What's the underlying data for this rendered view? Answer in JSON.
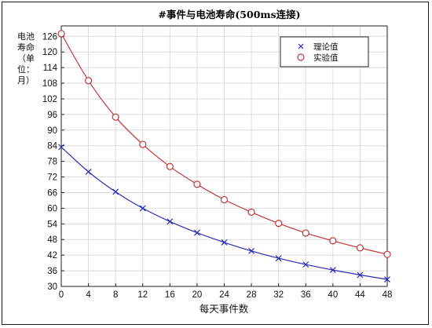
{
  "chart_data": {
    "type": "line",
    "title": "#事件与电池寿命(500ms连接)",
    "xlabel": "每天事件数",
    "ylabel_lines": [
      "电池",
      "寿命",
      "（单",
      "位：",
      "月）"
    ],
    "x": [
      0,
      4,
      8,
      12,
      16,
      20,
      24,
      28,
      32,
      36,
      40,
      44,
      48
    ],
    "xlim": [
      0,
      48
    ],
    "ylim": [
      30,
      130
    ],
    "xticks": [
      0,
      4,
      8,
      12,
      16,
      20,
      24,
      28,
      32,
      36,
      40,
      44,
      48
    ],
    "yticks": [
      30,
      36,
      42,
      48,
      54,
      60,
      66,
      72,
      78,
      84,
      90,
      96,
      102,
      108,
      114,
      120,
      126
    ],
    "grid": true,
    "legend_position": "top-right",
    "series": [
      {
        "name": "理论值",
        "marker": "x",
        "color": "#2b2bb8",
        "values": [
          83.5,
          74.0,
          66.3,
          60.0,
          54.9,
          50.6,
          46.9,
          43.6,
          40.8,
          38.4,
          36.3,
          34.4,
          32.7
        ]
      },
      {
        "name": "实验值",
        "marker": "circle",
        "color": "#c0353a",
        "values": [
          127.0,
          109.0,
          95.0,
          84.5,
          76.0,
          69.2,
          63.3,
          58.5,
          54.2,
          50.5,
          47.5,
          44.8,
          42.3
        ]
      }
    ]
  }
}
